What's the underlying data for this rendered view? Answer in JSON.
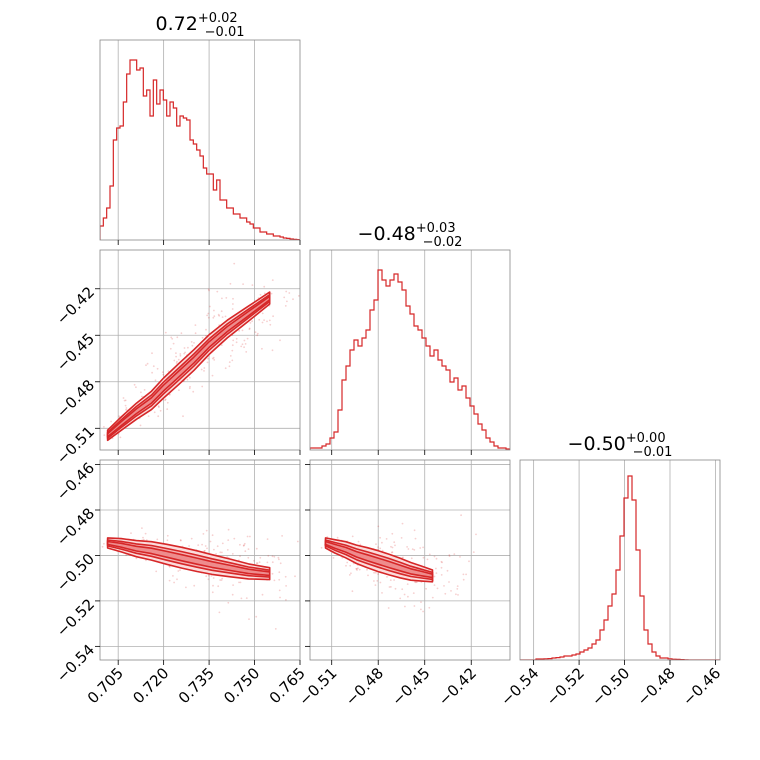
{
  "colors": {
    "accent": "#d62728",
    "grid": "#b0b0b0",
    "fill_levels": [
      "#fbdcdc",
      "#f5b2b3",
      "#ee8c8d"
    ]
  },
  "chart_data": {
    "type": "corner",
    "parameters": [
      {
        "range": [
          0.699,
          0.765
        ],
        "ticks": [
          "0.705",
          "0.720",
          "0.735",
          "0.750",
          "0.765"
        ],
        "tick_values": [
          0.705,
          0.72,
          0.735,
          0.75,
          0.765
        ],
        "title": {
          "median": "0.72",
          "plus": "+0.02",
          "minus": "−0.01"
        },
        "histogram": [
          0.07,
          0.11,
          0.16,
          0.27,
          0.5,
          0.56,
          0.57,
          0.69,
          0.83,
          0.9,
          0.9,
          0.85,
          0.86,
          0.72,
          0.75,
          0.62,
          0.8,
          0.68,
          0.75,
          0.7,
          0.62,
          0.69,
          0.66,
          0.57,
          0.62,
          0.61,
          0.6,
          0.5,
          0.48,
          0.45,
          0.42,
          0.36,
          0.33,
          0.33,
          0.25,
          0.3,
          0.2,
          0.2,
          0.16,
          0.16,
          0.13,
          0.13,
          0.11,
          0.11,
          0.09,
          0.08,
          0.06,
          0.06,
          0.04,
          0.04,
          0.03,
          0.03,
          0.02,
          0.02,
          0.015,
          0.01,
          0.008,
          0.005,
          0.003,
          0.002
        ]
      },
      {
        "range": [
          -0.524,
          -0.395
        ],
        "ticks": [
          "−0.51",
          "−0.48",
          "−0.45",
          "−0.42"
        ],
        "tick_values": [
          -0.51,
          -0.48,
          -0.45,
          -0.42
        ],
        "title": {
          "median": "−0.48",
          "plus": "+0.03",
          "minus": "−0.02"
        },
        "histogram": [
          0.01,
          0.01,
          0.01,
          0.02,
          0.03,
          0.06,
          0.09,
          0.2,
          0.35,
          0.42,
          0.5,
          0.55,
          0.52,
          0.56,
          0.6,
          0.7,
          0.75,
          0.9,
          0.85,
          0.82,
          0.85,
          0.88,
          0.84,
          0.8,
          0.72,
          0.68,
          0.62,
          0.6,
          0.56,
          0.52,
          0.47,
          0.5,
          0.45,
          0.42,
          0.4,
          0.34,
          0.36,
          0.3,
          0.32,
          0.26,
          0.22,
          0.18,
          0.13,
          0.1,
          0.06,
          0.04,
          0.02,
          0.01,
          0.01,
          0.005
        ]
      },
      {
        "range": [
          -0.546,
          -0.458
        ],
        "ticks": [
          "−0.54",
          "−0.52",
          "−0.50",
          "−0.48",
          "−0.46"
        ],
        "tick_values": [
          -0.54,
          -0.52,
          -0.5,
          -0.48,
          -0.46
        ],
        "title": {
          "median": "−0.50",
          "plus": "+0.00",
          "minus": "−0.01"
        },
        "histogram": [
          0.0,
          0.0,
          0.0,
          0.0,
          0.005,
          0.005,
          0.006,
          0.007,
          0.01,
          0.012,
          0.015,
          0.02,
          0.02,
          0.025,
          0.03,
          0.04,
          0.05,
          0.06,
          0.08,
          0.1,
          0.15,
          0.2,
          0.27,
          0.33,
          0.45,
          0.62,
          0.81,
          0.92,
          0.8,
          0.55,
          0.32,
          0.15,
          0.08,
          0.04,
          0.02,
          0.01,
          0.01,
          0.006,
          0.004,
          0.003,
          0.002,
          0.001,
          0.0,
          0.0,
          0.0,
          0.0,
          0.0,
          0.0,
          0.0,
          0.0
        ]
      }
    ],
    "correlations": [
      {
        "row": 1,
        "col": 0,
        "points": [
          [
            0.7015,
            -0.5145
          ],
          [
            0.706,
            -0.507
          ],
          [
            0.711,
            -0.499
          ],
          [
            0.716,
            -0.492
          ],
          [
            0.72,
            -0.484
          ],
          [
            0.725,
            -0.475
          ],
          [
            0.73,
            -0.466
          ],
          [
            0.735,
            -0.456
          ],
          [
            0.741,
            -0.446
          ],
          [
            0.748,
            -0.436
          ],
          [
            0.755,
            -0.426
          ]
        ]
      },
      {
        "row": 2,
        "col": 0,
        "points": [
          [
            0.7015,
            -0.4945
          ],
          [
            0.706,
            -0.4955
          ],
          [
            0.711,
            -0.497
          ],
          [
            0.716,
            -0.498
          ],
          [
            0.721,
            -0.4995
          ],
          [
            0.726,
            -0.501
          ],
          [
            0.731,
            -0.5025
          ],
          [
            0.736,
            -0.504
          ],
          [
            0.742,
            -0.5055
          ],
          [
            0.748,
            -0.507
          ],
          [
            0.755,
            -0.508
          ]
        ]
      },
      {
        "row": 2,
        "col": 1,
        "points": [
          [
            -0.514,
            -0.4945
          ],
          [
            -0.508,
            -0.496
          ],
          [
            -0.501,
            -0.4975
          ],
          [
            -0.494,
            -0.4995
          ],
          [
            -0.487,
            -0.501
          ],
          [
            -0.48,
            -0.5025
          ],
          [
            -0.473,
            -0.504
          ],
          [
            -0.466,
            -0.5055
          ],
          [
            -0.459,
            -0.507
          ],
          [
            -0.452,
            -0.508
          ],
          [
            -0.445,
            -0.509
          ]
        ]
      }
    ]
  }
}
